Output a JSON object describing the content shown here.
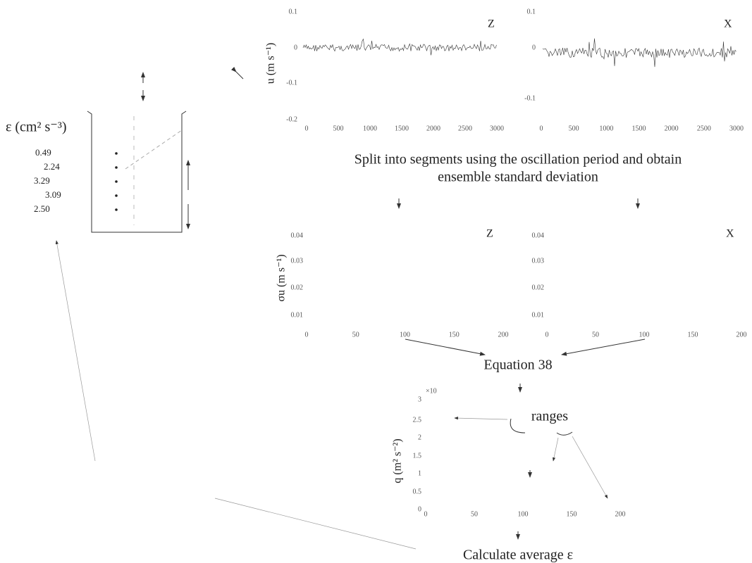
{
  "profile": {
    "label": "ε (cm² s⁻³)",
    "values": [
      "0.49",
      "2.24",
      "3.29",
      "3.09",
      "2.50"
    ]
  },
  "velocity_plots": [
    {
      "panel": "Z",
      "ylabel": "u (m s⁻¹)",
      "yticks": [
        "0.1",
        "0",
        "-0.1",
        "-0.2"
      ],
      "xticks": [
        "0",
        "500",
        "1000",
        "1500",
        "2000",
        "2500",
        "3000"
      ]
    },
    {
      "panel": "X",
      "yticks": [
        "0.1",
        "0",
        "-0.1"
      ],
      "xticks": [
        "0",
        "500",
        "1000",
        "1500",
        "2000",
        "2500",
        "3000"
      ]
    }
  ],
  "step1": [
    "Split into segments using the oscillation period and obtain",
    "ensemble standard deviation"
  ],
  "std_plots": [
    {
      "panel": "Z",
      "ylabel": "σu (m s⁻¹)",
      "yticks": [
        "0.04",
        "0.03",
        "0.02",
        "0.01"
      ],
      "xticks": [
        "0",
        "50",
        "100",
        "150",
        "200"
      ]
    },
    {
      "panel": "X",
      "yticks": [
        "0.04",
        "0.03",
        "0.02",
        "0.01"
      ],
      "xticks": [
        "0",
        "50",
        "100",
        "150",
        "200"
      ]
    }
  ],
  "step2": "Equation 38",
  "q_plot": {
    "ylabel": "q (m² s⁻²)",
    "exponent": "×10",
    "yticks": [
      "3",
      "2.5",
      "2",
      "1.5",
      "1",
      "0.5",
      "0"
    ],
    "xticks": [
      "0",
      "50",
      "100",
      "150",
      "200"
    ],
    "annotation": "ranges"
  },
  "step3": "Calculate average ε"
}
